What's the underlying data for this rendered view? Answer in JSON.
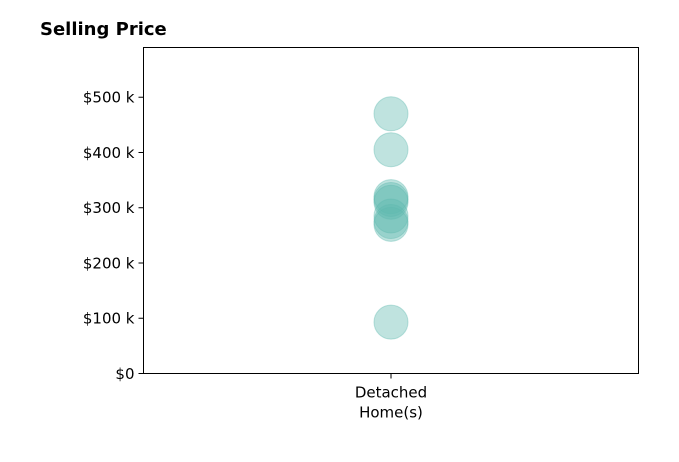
{
  "chart_data": {
    "type": "scatter",
    "title": "Selling Price",
    "xlabel": "",
    "ylabel": "",
    "categories": [
      "Detached\nHome(s)"
    ],
    "ylim": [
      0,
      590000
    ],
    "yticks": [
      0,
      100000,
      200000,
      300000,
      400000,
      500000
    ],
    "ytick_labels": [
      "$0",
      "$100 k",
      "$200 k",
      "$300 k",
      "$400 k",
      "$500 k"
    ],
    "series": [
      {
        "category": "Detached\nHome(s)",
        "values": [
          470000,
          405000,
          320000,
          315000,
          310000,
          285000,
          275000,
          270000,
          93000
        ]
      }
    ],
    "marker_color": "#5fb8b0",
    "marker_alpha": 0.4,
    "grid": false,
    "legend": "none"
  }
}
